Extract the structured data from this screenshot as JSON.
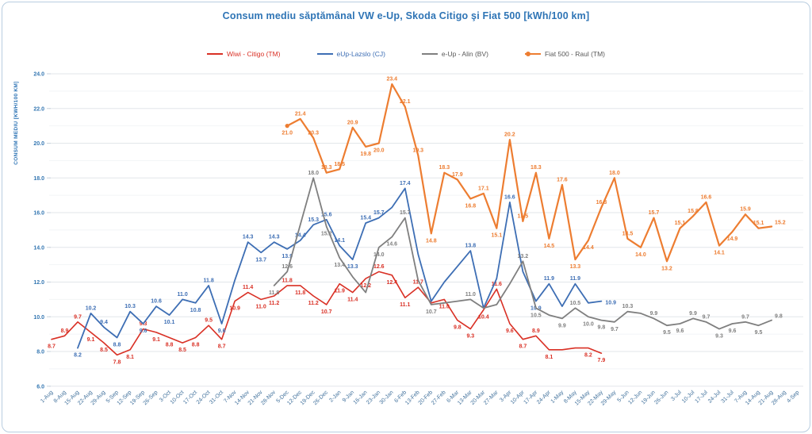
{
  "title": "Consum mediu săptămânal VW e-Up, Skoda Citigo şi Fiat 500 [kWh/100 km]",
  "y_axis": {
    "title": "CONSUM MEDIU [KWH/100 KM]"
  },
  "colors": {
    "title_blue": "#2e74b5",
    "axis_label_blue": "#3477b2",
    "x_label_blue": "#41719c",
    "grid_major": "#e2e6ea",
    "grid_minor": "#f2f4f6",
    "border": "#b9cde0"
  },
  "chart_data": {
    "type": "line",
    "title": "Consum mediu săptămânal VW e-Up, Skoda Citigo şi Fiat 500 [kWh/100 km]",
    "ylabel": "CONSUM MEDIU [KWH/100 KM]",
    "ylim": [
      6,
      24
    ],
    "ytick_step": 2,
    "grid_step": 1,
    "legend_position": "top",
    "categories": [
      "1-Aug",
      "8-Aug",
      "15-Aug",
      "22-Aug",
      "29-Aug",
      "5-Sep",
      "12-Sep",
      "19-Sep",
      "26-Sep",
      "3-Oct",
      "10-Oct",
      "17-Oct",
      "24-Oct",
      "31-Oct",
      "7-Nov",
      "14-Nov",
      "21-Nov",
      "28-Nov",
      "5-Dec",
      "12-Dec",
      "19-Dec",
      "26-Dec",
      "2-Jan",
      "9-Jan",
      "16-Jan",
      "23-Jan",
      "30-Jan",
      "6-Feb",
      "13-Feb",
      "20-Feb",
      "27-Feb",
      "6-Mar",
      "13-Mar",
      "20-Mar",
      "27-Mar",
      "3-Apr",
      "10-Apr",
      "17-Apr",
      "24-Apr",
      "1-May",
      "8-May",
      "15-May",
      "22-May",
      "29-May",
      "5-Jun",
      "12-Jun",
      "19-Jun",
      "26-Jun",
      "3-Jul",
      "10-Jul",
      "17-Jul",
      "24-Jul",
      "31-Jul",
      "7-Aug",
      "14-Aug",
      "21-Aug",
      "28-Aug",
      "4-Sep"
    ],
    "series": [
      {
        "name": "Wiwi - Citigo (TM)",
        "color": "#d93025",
        "legend_text_color": "#d93025",
        "stroke_width": 1.6,
        "marker_first": false,
        "values": [
          [
            8.7,
            "b"
          ],
          [
            8.9,
            "a"
          ],
          [
            9.7,
            "a"
          ],
          [
            9.1,
            "b"
          ],
          [
            8.5,
            "b"
          ],
          [
            7.8,
            "b"
          ],
          [
            8.1,
            "b"
          ],
          [
            9.3,
            "a"
          ],
          [
            9.1,
            "b"
          ],
          [
            8.8,
            "b"
          ],
          [
            8.5,
            "b"
          ],
          [
            8.8,
            "b"
          ],
          [
            9.5,
            "a"
          ],
          [
            8.7,
            "b"
          ],
          [
            10.9,
            "b"
          ],
          [
            11.4,
            "a"
          ],
          [
            11.0,
            "b"
          ],
          [
            11.2,
            "b"
          ],
          [
            11.8,
            "a"
          ],
          [
            11.8,
            "b"
          ],
          [
            11.2,
            "b"
          ],
          [
            10.7,
            "b"
          ],
          [
            11.9,
            "b"
          ],
          [
            11.4,
            "b"
          ],
          [
            12.2,
            "b"
          ],
          [
            12.6,
            "a"
          ],
          [
            12.4,
            "b"
          ],
          [
            11.1,
            "b"
          ],
          [
            11.7,
            "a"
          ],
          [
            10.8,
            "h"
          ],
          [
            11.0,
            "b"
          ],
          [
            9.8,
            "b"
          ],
          [
            9.3,
            "b"
          ],
          [
            10.4,
            "b"
          ],
          [
            11.6,
            "a"
          ],
          [
            9.6,
            "b"
          ],
          [
            8.7,
            "b"
          ],
          [
            8.9,
            "a"
          ],
          [
            8.1,
            "b"
          ],
          [
            8.1,
            "h"
          ],
          [
            8.2,
            "h"
          ],
          [
            8.2,
            "b"
          ],
          [
            7.9,
            "b"
          ],
          null,
          null,
          null,
          null,
          null,
          null,
          null,
          null,
          null,
          null,
          null,
          null,
          null,
          null,
          null
        ]
      },
      {
        "name": "eUp-Lazslo (CJ)",
        "color": "#3d6eb4",
        "legend_text_color": "#3d6eb4",
        "stroke_width": 1.8,
        "marker_first": false,
        "values": [
          null,
          null,
          [
            8.2,
            "b"
          ],
          [
            10.2,
            "a"
          ],
          [
            9.4,
            "a"
          ],
          [
            8.8,
            "b"
          ],
          [
            10.3,
            "a"
          ],
          [
            9.6,
            "b"
          ],
          [
            10.6,
            "a"
          ],
          [
            10.1,
            "b"
          ],
          [
            11.0,
            "a"
          ],
          [
            10.8,
            "b"
          ],
          [
            11.8,
            "a"
          ],
          [
            9.6,
            "b"
          ],
          [
            12.1,
            "h"
          ],
          [
            14.3,
            "a"
          ],
          [
            13.7,
            "b"
          ],
          [
            14.3,
            "a"
          ],
          [
            13.9,
            "b"
          ],
          [
            14.4,
            "a"
          ],
          [
            15.3,
            "a"
          ],
          [
            15.6,
            "a"
          ],
          [
            14.1,
            "a"
          ],
          [
            13.3,
            "b"
          ],
          [
            15.4,
            "a"
          ],
          [
            15.7,
            "a"
          ],
          [
            16.3,
            "h"
          ],
          [
            17.4,
            "a"
          ],
          [
            13.6,
            "h"
          ],
          [
            10.9,
            "h"
          ],
          [
            12.0,
            "h"
          ],
          [
            12.9,
            "h"
          ],
          [
            13.8,
            "a"
          ],
          [
            10.5,
            "h"
          ],
          [
            12.2,
            "h"
          ],
          [
            16.6,
            "a"
          ],
          [
            12.6,
            "h"
          ],
          [
            10.9,
            "b"
          ],
          [
            11.9,
            "a"
          ],
          [
            10.6,
            "h"
          ],
          [
            11.9,
            "a"
          ],
          [
            10.8,
            "h"
          ],
          [
            10.9,
            "r"
          ],
          null,
          null,
          null,
          null,
          null,
          null,
          null,
          null,
          null,
          null,
          null,
          null,
          null,
          null,
          null
        ]
      },
      {
        "name": "e-Up - Alin (BV)",
        "color": "#7f7f7f",
        "legend_text_color": "#595959",
        "stroke_width": 1.8,
        "marker_first": false,
        "values": [
          null,
          null,
          null,
          null,
          null,
          null,
          null,
          null,
          null,
          null,
          null,
          null,
          null,
          null,
          null,
          null,
          null,
          [
            11.8,
            "b"
          ],
          [
            12.6,
            "a"
          ],
          [
            15.3,
            "h"
          ],
          [
            18.0,
            "a"
          ],
          [
            15.2,
            "b"
          ],
          [
            13.4,
            "b"
          ],
          [
            12.3,
            "h"
          ],
          [
            11.4,
            "h"
          ],
          [
            14.0,
            "b"
          ],
          [
            14.6,
            "b"
          ],
          [
            15.7,
            "a"
          ],
          [
            12.1,
            "h"
          ],
          [
            10.7,
            "b"
          ],
          [
            10.8,
            "h"
          ],
          [
            10.9,
            "h"
          ],
          [
            11.0,
            "a"
          ],
          [
            10.5,
            "h"
          ],
          [
            10.7,
            "h"
          ],
          [
            11.9,
            "h"
          ],
          [
            13.2,
            "a"
          ],
          [
            10.5,
            "b"
          ],
          [
            10.1,
            "h"
          ],
          [
            9.9,
            "b"
          ],
          [
            10.5,
            "a"
          ],
          [
            10.0,
            "b"
          ],
          [
            9.8,
            "b"
          ],
          [
            9.7,
            "b"
          ],
          [
            10.3,
            "a"
          ],
          [
            10.2,
            "h"
          ],
          [
            9.9,
            "a"
          ],
          [
            9.5,
            "b"
          ],
          [
            9.6,
            "b"
          ],
          [
            9.9,
            "a"
          ],
          [
            9.7,
            "a"
          ],
          [
            9.3,
            "b"
          ],
          [
            9.6,
            "b"
          ],
          [
            9.7,
            "a"
          ],
          [
            9.5,
            "b"
          ],
          [
            9.8,
            "ra"
          ],
          null,
          null
        ]
      },
      {
        "name": "Fiat 500 - Raul (TM)",
        "color": "#ed7d31",
        "legend_text_color": "#595959",
        "stroke_width": 2.2,
        "marker_first": true,
        "values": [
          null,
          null,
          null,
          null,
          null,
          null,
          null,
          null,
          null,
          null,
          null,
          null,
          null,
          null,
          null,
          null,
          null,
          null,
          [
            21.0,
            "b"
          ],
          [
            21.4,
            "a"
          ],
          [
            20.3,
            "a"
          ],
          [
            18.3,
            "a"
          ],
          [
            18.5,
            "a"
          ],
          [
            20.9,
            "a"
          ],
          [
            19.8,
            "b"
          ],
          [
            20.0,
            "b"
          ],
          [
            23.4,
            "a"
          ],
          [
            22.1,
            "a"
          ],
          [
            19.3,
            "a"
          ],
          [
            14.8,
            "b"
          ],
          [
            18.3,
            "a"
          ],
          [
            17.9,
            "a"
          ],
          [
            16.8,
            "b"
          ],
          [
            17.1,
            "a"
          ],
          [
            15.1,
            "b"
          ],
          [
            20.2,
            "a"
          ],
          [
            15.5,
            "a"
          ],
          [
            18.3,
            "a"
          ],
          [
            14.5,
            "b"
          ],
          [
            17.6,
            "a"
          ],
          [
            13.3,
            "b"
          ],
          [
            14.4,
            "b"
          ],
          [
            16.3,
            "a"
          ],
          [
            18.0,
            "a"
          ],
          [
            14.5,
            "a"
          ],
          [
            14.0,
            "b"
          ],
          [
            15.7,
            "a"
          ],
          [
            13.2,
            "b"
          ],
          [
            15.1,
            "a"
          ],
          [
            15.8,
            "a"
          ],
          [
            16.6,
            "a"
          ],
          [
            14.1,
            "b"
          ],
          [
            14.9,
            "b"
          ],
          [
            15.9,
            "a"
          ],
          [
            15.1,
            "a"
          ],
          [
            15.2,
            "ra"
          ],
          null,
          null
        ]
      }
    ]
  }
}
